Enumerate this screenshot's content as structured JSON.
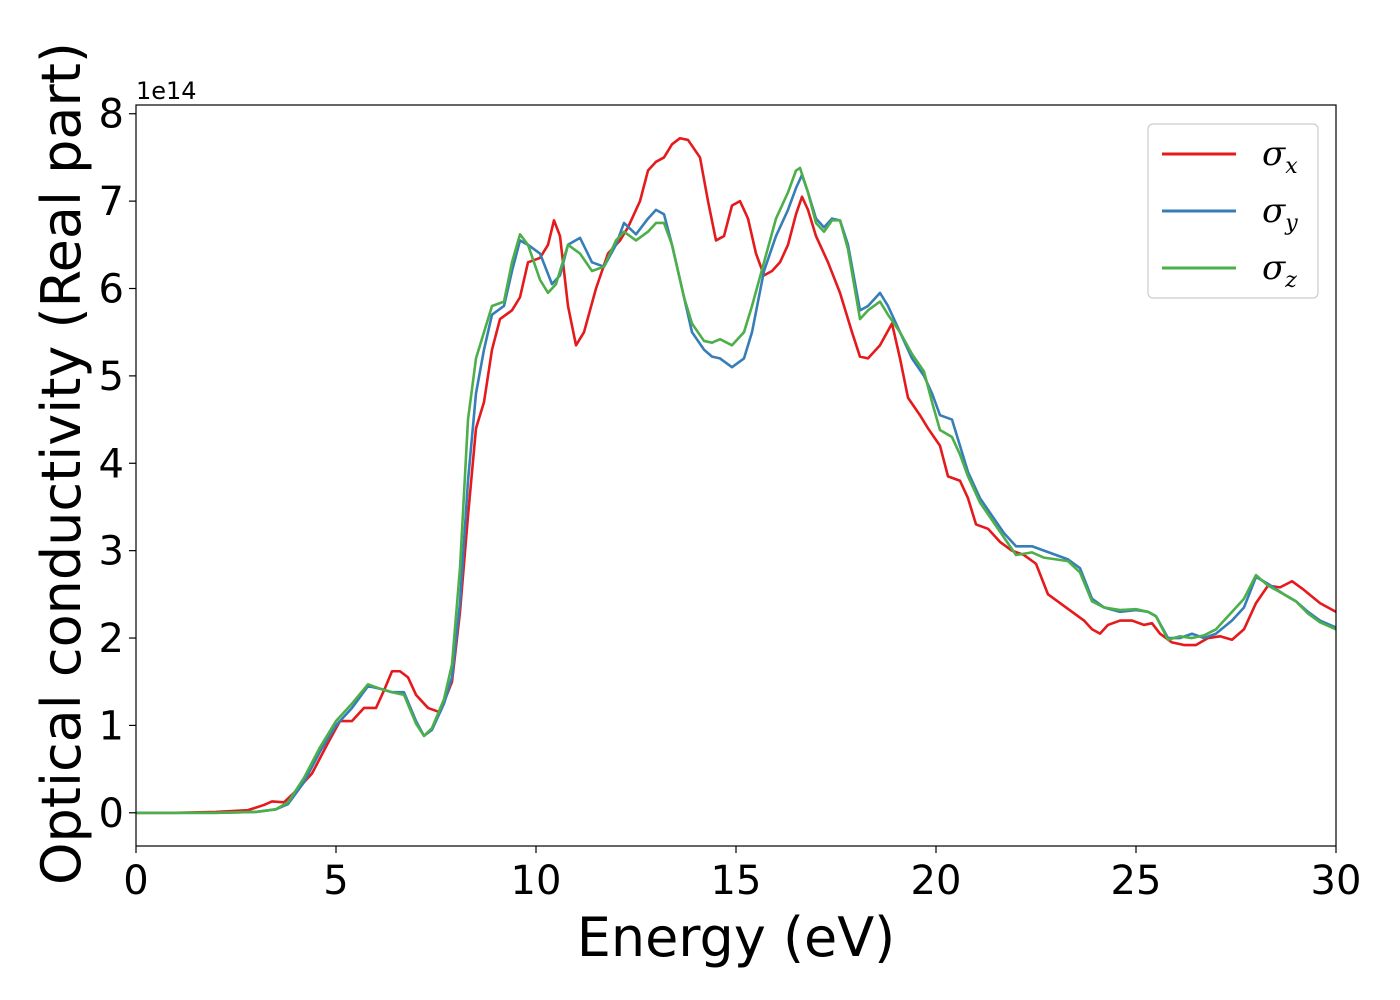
{
  "chart_data": {
    "type": "line",
    "title": "",
    "xlabel": "Energy (eV)",
    "ylabel": "Optical conductivity (Real part)",
    "y_offset_label": "1e14",
    "xlim": [
      0,
      30
    ],
    "ylim": [
      -0.38,
      8.1
    ],
    "xticks": [
      0,
      5,
      10,
      15,
      20,
      25,
      30
    ],
    "yticks": [
      0,
      1,
      2,
      3,
      4,
      5,
      6,
      7,
      8
    ],
    "grid": false,
    "legend": {
      "position": "top-right",
      "entries": [
        {
          "symbol": "σ",
          "sub": "x",
          "color": "#e41a1c"
        },
        {
          "symbol": "σ",
          "sub": "y",
          "color": "#377eb8"
        },
        {
          "symbol": "σ",
          "sub": "z",
          "color": "#4daf4a"
        }
      ]
    },
    "series": [
      {
        "color": "#e41a1c",
        "points": [
          [
            0,
            0
          ],
          [
            1,
            0
          ],
          [
            2,
            0.01
          ],
          [
            2.8,
            0.03
          ],
          [
            3.2,
            0.09
          ],
          [
            3.4,
            0.13
          ],
          [
            3.7,
            0.12
          ],
          [
            4.0,
            0.25
          ],
          [
            4.4,
            0.45
          ],
          [
            4.8,
            0.8
          ],
          [
            5.1,
            1.05
          ],
          [
            5.4,
            1.05
          ],
          [
            5.7,
            1.2
          ],
          [
            6.0,
            1.2
          ],
          [
            6.2,
            1.4
          ],
          [
            6.4,
            1.62
          ],
          [
            6.6,
            1.62
          ],
          [
            6.8,
            1.55
          ],
          [
            7.0,
            1.35
          ],
          [
            7.3,
            1.2
          ],
          [
            7.6,
            1.15
          ],
          [
            7.9,
            1.5
          ],
          [
            8.1,
            2.3
          ],
          [
            8.3,
            3.4
          ],
          [
            8.5,
            4.4
          ],
          [
            8.7,
            4.7
          ],
          [
            8.9,
            5.3
          ],
          [
            9.1,
            5.65
          ],
          [
            9.4,
            5.75
          ],
          [
            9.6,
            5.9
          ],
          [
            9.8,
            6.3
          ],
          [
            10.1,
            6.35
          ],
          [
            10.3,
            6.5
          ],
          [
            10.45,
            6.78
          ],
          [
            10.6,
            6.6
          ],
          [
            10.8,
            5.8
          ],
          [
            11.0,
            5.35
          ],
          [
            11.2,
            5.5
          ],
          [
            11.5,
            6.0
          ],
          [
            11.8,
            6.4
          ],
          [
            12.1,
            6.55
          ],
          [
            12.3,
            6.7
          ],
          [
            12.6,
            7.0
          ],
          [
            12.8,
            7.35
          ],
          [
            13.0,
            7.45
          ],
          [
            13.2,
            7.5
          ],
          [
            13.4,
            7.65
          ],
          [
            13.6,
            7.72
          ],
          [
            13.8,
            7.7
          ],
          [
            14.1,
            7.5
          ],
          [
            14.3,
            7.0
          ],
          [
            14.5,
            6.55
          ],
          [
            14.7,
            6.6
          ],
          [
            14.9,
            6.95
          ],
          [
            15.1,
            7.0
          ],
          [
            15.3,
            6.8
          ],
          [
            15.5,
            6.4
          ],
          [
            15.7,
            6.15
          ],
          [
            15.9,
            6.2
          ],
          [
            16.1,
            6.3
          ],
          [
            16.3,
            6.5
          ],
          [
            16.5,
            6.85
          ],
          [
            16.65,
            7.05
          ],
          [
            16.8,
            6.9
          ],
          [
            17.0,
            6.6
          ],
          [
            17.3,
            6.3
          ],
          [
            17.6,
            5.95
          ],
          [
            17.9,
            5.5
          ],
          [
            18.1,
            5.22
          ],
          [
            18.3,
            5.2
          ],
          [
            18.6,
            5.35
          ],
          [
            18.9,
            5.6
          ],
          [
            19.1,
            5.2
          ],
          [
            19.3,
            4.75
          ],
          [
            19.6,
            4.55
          ],
          [
            19.8,
            4.4
          ],
          [
            20.1,
            4.2
          ],
          [
            20.3,
            3.85
          ],
          [
            20.6,
            3.8
          ],
          [
            20.8,
            3.6
          ],
          [
            21.0,
            3.3
          ],
          [
            21.3,
            3.25
          ],
          [
            21.6,
            3.1
          ],
          [
            21.9,
            3.0
          ],
          [
            22.2,
            2.95
          ],
          [
            22.5,
            2.85
          ],
          [
            22.8,
            2.5
          ],
          [
            23.1,
            2.4
          ],
          [
            23.4,
            2.3
          ],
          [
            23.7,
            2.2
          ],
          [
            23.9,
            2.1
          ],
          [
            24.1,
            2.05
          ],
          [
            24.3,
            2.15
          ],
          [
            24.6,
            2.2
          ],
          [
            24.9,
            2.2
          ],
          [
            25.2,
            2.15
          ],
          [
            25.4,
            2.17
          ],
          [
            25.6,
            2.05
          ],
          [
            25.9,
            1.95
          ],
          [
            26.2,
            1.92
          ],
          [
            26.5,
            1.92
          ],
          [
            26.8,
            2.0
          ],
          [
            27.1,
            2.02
          ],
          [
            27.4,
            1.98
          ],
          [
            27.7,
            2.1
          ],
          [
            28.0,
            2.4
          ],
          [
            28.3,
            2.6
          ],
          [
            28.6,
            2.58
          ],
          [
            28.9,
            2.65
          ],
          [
            29.2,
            2.55
          ],
          [
            29.6,
            2.4
          ],
          [
            30,
            2.3
          ]
        ]
      },
      {
        "color": "#377eb8",
        "points": [
          [
            0,
            0
          ],
          [
            1,
            0
          ],
          [
            2,
            0
          ],
          [
            3.0,
            0.01
          ],
          [
            3.5,
            0.04
          ],
          [
            3.8,
            0.1
          ],
          [
            4.2,
            0.35
          ],
          [
            4.6,
            0.7
          ],
          [
            5.0,
            1.0
          ],
          [
            5.4,
            1.2
          ],
          [
            5.8,
            1.45
          ],
          [
            6.1,
            1.42
          ],
          [
            6.4,
            1.38
          ],
          [
            6.7,
            1.38
          ],
          [
            7.0,
            1.05
          ],
          [
            7.2,
            0.88
          ],
          [
            7.4,
            0.95
          ],
          [
            7.7,
            1.25
          ],
          [
            7.9,
            1.55
          ],
          [
            8.1,
            2.4
          ],
          [
            8.3,
            3.8
          ],
          [
            8.5,
            4.8
          ],
          [
            8.7,
            5.3
          ],
          [
            8.9,
            5.7
          ],
          [
            9.2,
            5.8
          ],
          [
            9.4,
            6.2
          ],
          [
            9.6,
            6.55
          ],
          [
            9.8,
            6.5
          ],
          [
            10.1,
            6.4
          ],
          [
            10.4,
            6.05
          ],
          [
            10.6,
            6.15
          ],
          [
            10.8,
            6.5
          ],
          [
            11.1,
            6.58
          ],
          [
            11.4,
            6.3
          ],
          [
            11.7,
            6.25
          ],
          [
            12.0,
            6.5
          ],
          [
            12.2,
            6.75
          ],
          [
            12.5,
            6.62
          ],
          [
            12.8,
            6.8
          ],
          [
            13.0,
            6.9
          ],
          [
            13.2,
            6.85
          ],
          [
            13.4,
            6.5
          ],
          [
            13.7,
            5.9
          ],
          [
            13.9,
            5.5
          ],
          [
            14.2,
            5.3
          ],
          [
            14.4,
            5.22
          ],
          [
            14.6,
            5.2
          ],
          [
            14.9,
            5.1
          ],
          [
            15.2,
            5.2
          ],
          [
            15.4,
            5.5
          ],
          [
            15.7,
            6.2
          ],
          [
            16.0,
            6.6
          ],
          [
            16.3,
            6.9
          ],
          [
            16.5,
            7.15
          ],
          [
            16.65,
            7.3
          ],
          [
            16.8,
            7.1
          ],
          [
            17.0,
            6.8
          ],
          [
            17.2,
            6.7
          ],
          [
            17.4,
            6.8
          ],
          [
            17.6,
            6.78
          ],
          [
            17.8,
            6.5
          ],
          [
            18.1,
            5.75
          ],
          [
            18.3,
            5.8
          ],
          [
            18.6,
            5.95
          ],
          [
            18.8,
            5.8
          ],
          [
            19.1,
            5.5
          ],
          [
            19.4,
            5.2
          ],
          [
            19.7,
            5.0
          ],
          [
            19.9,
            4.8
          ],
          [
            20.1,
            4.55
          ],
          [
            20.4,
            4.5
          ],
          [
            20.6,
            4.2
          ],
          [
            20.8,
            3.9
          ],
          [
            21.1,
            3.6
          ],
          [
            21.4,
            3.4
          ],
          [
            21.7,
            3.2
          ],
          [
            22.0,
            3.05
          ],
          [
            22.4,
            3.05
          ],
          [
            22.7,
            3.0
          ],
          [
            23.0,
            2.95
          ],
          [
            23.3,
            2.9
          ],
          [
            23.6,
            2.8
          ],
          [
            23.9,
            2.45
          ],
          [
            24.2,
            2.35
          ],
          [
            24.6,
            2.3
          ],
          [
            25.0,
            2.32
          ],
          [
            25.3,
            2.3
          ],
          [
            25.5,
            2.25
          ],
          [
            25.8,
            2.0
          ],
          [
            26.1,
            2.0
          ],
          [
            26.4,
            2.05
          ],
          [
            26.7,
            2.0
          ],
          [
            27.0,
            2.05
          ],
          [
            27.4,
            2.2
          ],
          [
            27.7,
            2.35
          ],
          [
            28.0,
            2.7
          ],
          [
            28.3,
            2.62
          ],
          [
            28.7,
            2.5
          ],
          [
            29.0,
            2.42
          ],
          [
            29.3,
            2.3
          ],
          [
            29.6,
            2.2
          ],
          [
            30,
            2.12
          ]
        ]
      },
      {
        "color": "#4daf4a",
        "points": [
          [
            0,
            0
          ],
          [
            1,
            0
          ],
          [
            2,
            0
          ],
          [
            3.0,
            0.01
          ],
          [
            3.5,
            0.04
          ],
          [
            3.8,
            0.12
          ],
          [
            4.2,
            0.4
          ],
          [
            4.6,
            0.75
          ],
          [
            5.0,
            1.05
          ],
          [
            5.4,
            1.25
          ],
          [
            5.8,
            1.47
          ],
          [
            6.1,
            1.42
          ],
          [
            6.4,
            1.38
          ],
          [
            6.7,
            1.35
          ],
          [
            7.0,
            1.02
          ],
          [
            7.2,
            0.88
          ],
          [
            7.4,
            0.97
          ],
          [
            7.7,
            1.3
          ],
          [
            7.9,
            1.7
          ],
          [
            8.1,
            2.8
          ],
          [
            8.3,
            4.5
          ],
          [
            8.5,
            5.2
          ],
          [
            8.7,
            5.5
          ],
          [
            8.9,
            5.8
          ],
          [
            9.2,
            5.85
          ],
          [
            9.4,
            6.3
          ],
          [
            9.6,
            6.62
          ],
          [
            9.8,
            6.5
          ],
          [
            10.1,
            6.1
          ],
          [
            10.3,
            5.95
          ],
          [
            10.5,
            6.05
          ],
          [
            10.8,
            6.5
          ],
          [
            11.1,
            6.4
          ],
          [
            11.4,
            6.2
          ],
          [
            11.7,
            6.25
          ],
          [
            12.0,
            6.55
          ],
          [
            12.2,
            6.65
          ],
          [
            12.5,
            6.55
          ],
          [
            12.8,
            6.65
          ],
          [
            13.0,
            6.75
          ],
          [
            13.2,
            6.75
          ],
          [
            13.4,
            6.5
          ],
          [
            13.7,
            5.9
          ],
          [
            13.9,
            5.6
          ],
          [
            14.2,
            5.4
          ],
          [
            14.4,
            5.38
          ],
          [
            14.6,
            5.42
          ],
          [
            14.9,
            5.35
          ],
          [
            15.2,
            5.5
          ],
          [
            15.4,
            5.8
          ],
          [
            15.7,
            6.3
          ],
          [
            16.0,
            6.8
          ],
          [
            16.3,
            7.1
          ],
          [
            16.5,
            7.35
          ],
          [
            16.6,
            7.38
          ],
          [
            16.8,
            7.1
          ],
          [
            17.0,
            6.75
          ],
          [
            17.2,
            6.65
          ],
          [
            17.4,
            6.78
          ],
          [
            17.6,
            6.78
          ],
          [
            17.8,
            6.45
          ],
          [
            18.1,
            5.65
          ],
          [
            18.3,
            5.75
          ],
          [
            18.6,
            5.85
          ],
          [
            18.8,
            5.7
          ],
          [
            19.1,
            5.5
          ],
          [
            19.4,
            5.25
          ],
          [
            19.7,
            5.05
          ],
          [
            19.9,
            4.7
          ],
          [
            20.1,
            4.38
          ],
          [
            20.4,
            4.3
          ],
          [
            20.6,
            4.1
          ],
          [
            20.8,
            3.85
          ],
          [
            21.1,
            3.55
          ],
          [
            21.4,
            3.35
          ],
          [
            21.7,
            3.15
          ],
          [
            22.0,
            2.95
          ],
          [
            22.4,
            2.98
          ],
          [
            22.7,
            2.92
          ],
          [
            23.0,
            2.9
          ],
          [
            23.3,
            2.88
          ],
          [
            23.6,
            2.75
          ],
          [
            23.9,
            2.42
          ],
          [
            24.2,
            2.35
          ],
          [
            24.6,
            2.32
          ],
          [
            25.0,
            2.33
          ],
          [
            25.3,
            2.3
          ],
          [
            25.5,
            2.25
          ],
          [
            25.8,
            1.98
          ],
          [
            26.1,
            2.02
          ],
          [
            26.4,
            2.0
          ],
          [
            26.7,
            2.03
          ],
          [
            27.0,
            2.1
          ],
          [
            27.4,
            2.3
          ],
          [
            27.7,
            2.45
          ],
          [
            28.0,
            2.72
          ],
          [
            28.3,
            2.6
          ],
          [
            28.7,
            2.5
          ],
          [
            29.0,
            2.42
          ],
          [
            29.3,
            2.28
          ],
          [
            29.6,
            2.18
          ],
          [
            30,
            2.1
          ]
        ]
      }
    ]
  }
}
